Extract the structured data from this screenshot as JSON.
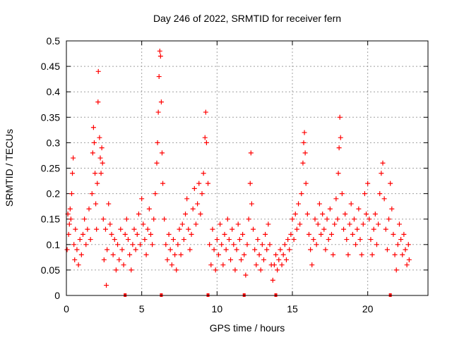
{
  "chart_data": {
    "type": "scatter",
    "title": "Day 246 of 2022, SRMTID for receiver fern",
    "xlabel": "GPS time / hours",
    "ylabel": "SRMTID / TECUs",
    "xlim": [
      0,
      24
    ],
    "ylim": [
      0,
      0.5
    ],
    "xticks": [
      0,
      5,
      10,
      15,
      20
    ],
    "xtick_labels": [
      "0",
      "5",
      "10",
      "15",
      "20"
    ],
    "yticks": [
      0,
      0.05,
      0.1,
      0.15,
      0.2,
      0.25,
      0.3,
      0.35,
      0.4,
      0.45,
      0.5
    ],
    "ytick_labels": [
      "0",
      "0.05",
      "0.1",
      "0.15",
      "0.2",
      "0.25",
      "0.3",
      "0.35",
      "0.4",
      "0.45",
      "0.5"
    ],
    "grid": true,
    "marker": "+",
    "series": [
      {
        "name": "SRMTID",
        "color": "#ff0000",
        "points": [
          [
            0.05,
            0.09
          ],
          [
            0.1,
            0.16
          ],
          [
            0.15,
            0.12
          ],
          [
            0.2,
            0.14
          ],
          [
            0.25,
            0.17
          ],
          [
            0.3,
            0.15
          ],
          [
            0.35,
            0.2
          ],
          [
            0.4,
            0.24
          ],
          [
            0.45,
            0.27
          ],
          [
            0.5,
            0.1
          ],
          [
            0.55,
            0.07
          ],
          [
            0.6,
            0.13
          ],
          [
            0.7,
            0.09
          ],
          [
            0.8,
            0.06
          ],
          [
            0.9,
            0.11
          ],
          [
            1.0,
            0.08
          ],
          [
            1.1,
            0.12
          ],
          [
            1.2,
            0.15
          ],
          [
            1.3,
            0.1
          ],
          [
            1.4,
            0.13
          ],
          [
            1.5,
            0.17
          ],
          [
            1.6,
            0.11
          ],
          [
            1.7,
            0.2
          ],
          [
            1.75,
            0.28
          ],
          [
            1.8,
            0.33
          ],
          [
            1.85,
            0.3
          ],
          [
            1.9,
            0.24
          ],
          [
            1.95,
            0.18
          ],
          [
            2.0,
            0.13
          ],
          [
            2.05,
            0.22
          ],
          [
            2.1,
            0.38
          ],
          [
            2.12,
            0.44
          ],
          [
            2.2,
            0.31
          ],
          [
            2.25,
            0.27
          ],
          [
            2.3,
            0.24
          ],
          [
            2.35,
            0.29
          ],
          [
            2.4,
            0.26
          ],
          [
            2.45,
            0.15
          ],
          [
            2.5,
            0.07
          ],
          [
            2.6,
            0.13
          ],
          [
            2.65,
            0.02
          ],
          [
            2.7,
            0.09
          ],
          [
            2.8,
            0.18
          ],
          [
            2.9,
            0.14
          ],
          [
            3.0,
            0.12
          ],
          [
            3.1,
            0.08
          ],
          [
            3.2,
            0.11
          ],
          [
            3.3,
            0.05
          ],
          [
            3.4,
            0.1
          ],
          [
            3.5,
            0.07
          ],
          [
            3.6,
            0.13
          ],
          [
            3.7,
            0.09
          ],
          [
            3.8,
            0.06
          ],
          [
            3.9,
            0.12
          ],
          [
            4.0,
            0.15
          ],
          [
            4.1,
            0.11
          ],
          [
            4.2,
            0.08
          ],
          [
            4.3,
            0.05
          ],
          [
            4.4,
            0.1
          ],
          [
            4.5,
            0.13
          ],
          [
            4.6,
            0.09
          ],
          [
            4.7,
            0.12
          ],
          [
            4.8,
            0.16
          ],
          [
            4.9,
            0.1
          ],
          [
            5.0,
            0.19
          ],
          [
            5.1,
            0.14
          ],
          [
            5.2,
            0.11
          ],
          [
            5.3,
            0.08
          ],
          [
            5.4,
            0.13
          ],
          [
            5.5,
            0.17
          ],
          [
            5.6,
            0.12
          ],
          [
            5.7,
            0.1
          ],
          [
            5.8,
            0.15
          ],
          [
            5.9,
            0.2
          ],
          [
            6.0,
            0.26
          ],
          [
            6.05,
            0.3
          ],
          [
            6.1,
            0.36
          ],
          [
            6.15,
            0.43
          ],
          [
            6.2,
            0.48
          ],
          [
            6.25,
            0.47
          ],
          [
            6.3,
            0.38
          ],
          [
            6.35,
            0.28
          ],
          [
            6.4,
            0.22
          ],
          [
            6.5,
            0.15
          ],
          [
            6.6,
            0.1
          ],
          [
            6.7,
            0.07
          ],
          [
            6.8,
            0.12
          ],
          [
            6.9,
            0.09
          ],
          [
            7.0,
            0.06
          ],
          [
            7.1,
            0.11
          ],
          [
            7.2,
            0.08
          ],
          [
            7.3,
            0.05
          ],
          [
            7.4,
            0.1
          ],
          [
            7.5,
            0.13
          ],
          [
            7.6,
            0.08
          ],
          [
            7.7,
            0.14
          ],
          [
            7.8,
            0.11
          ],
          [
            7.9,
            0.16
          ],
          [
            8.0,
            0.19
          ],
          [
            8.1,
            0.13
          ],
          [
            8.2,
            0.09
          ],
          [
            8.3,
            0.12
          ],
          [
            8.4,
            0.17
          ],
          [
            8.5,
            0.21
          ],
          [
            8.6,
            0.14
          ],
          [
            8.7,
            0.18
          ],
          [
            8.8,
            0.22
          ],
          [
            8.9,
            0.16
          ],
          [
            9.0,
            0.2
          ],
          [
            9.1,
            0.24
          ],
          [
            9.2,
            0.31
          ],
          [
            9.25,
            0.36
          ],
          [
            9.3,
            0.3
          ],
          [
            9.4,
            0.22
          ],
          [
            9.5,
            0.1
          ],
          [
            9.6,
            0.06
          ],
          [
            9.7,
            0.13
          ],
          [
            9.8,
            0.09
          ],
          [
            9.9,
            0.05
          ],
          [
            10.0,
            0.11
          ],
          [
            10.1,
            0.08
          ],
          [
            10.2,
            0.14
          ],
          [
            10.3,
            0.1
          ],
          [
            10.4,
            0.06
          ],
          [
            10.5,
            0.12
          ],
          [
            10.6,
            0.09
          ],
          [
            10.7,
            0.15
          ],
          [
            10.8,
            0.11
          ],
          [
            10.9,
            0.07
          ],
          [
            11.0,
            0.13
          ],
          [
            11.1,
            0.1
          ],
          [
            11.2,
            0.05
          ],
          [
            11.3,
            0.09
          ],
          [
            11.4,
            0.14
          ],
          [
            11.5,
            0.11
          ],
          [
            11.6,
            0.07
          ],
          [
            11.7,
            0.12
          ],
          [
            11.8,
            0.08
          ],
          [
            11.9,
            0.04
          ],
          [
            12.0,
            0.1
          ],
          [
            12.1,
            0.15
          ],
          [
            12.2,
            0.22
          ],
          [
            12.25,
            0.28
          ],
          [
            12.3,
            0.18
          ],
          [
            12.4,
            0.13
          ],
          [
            12.5,
            0.09
          ],
          [
            12.6,
            0.06
          ],
          [
            12.7,
            0.11
          ],
          [
            12.8,
            0.08
          ],
          [
            12.9,
            0.05
          ],
          [
            13.0,
            0.1
          ],
          [
            13.1,
            0.07
          ],
          [
            13.2,
            0.12
          ],
          [
            13.3,
            0.09
          ],
          [
            13.4,
            0.14
          ],
          [
            13.5,
            0.1
          ],
          [
            13.6,
            0.06
          ],
          [
            13.7,
            0.03
          ],
          [
            13.8,
            0.06
          ],
          [
            13.9,
            0.08
          ],
          [
            14.0,
            0.05
          ],
          [
            14.1,
            0.07
          ],
          [
            14.2,
            0.09
          ],
          [
            14.3,
            0.06
          ],
          [
            14.4,
            0.08
          ],
          [
            14.5,
            0.1
          ],
          [
            14.6,
            0.07
          ],
          [
            14.7,
            0.11
          ],
          [
            14.8,
            0.09
          ],
          [
            14.9,
            0.12
          ],
          [
            15.0,
            0.15
          ],
          [
            15.1,
            0.11
          ],
          [
            15.2,
            0.16
          ],
          [
            15.3,
            0.13
          ],
          [
            15.4,
            0.18
          ],
          [
            15.5,
            0.14
          ],
          [
            15.6,
            0.2
          ],
          [
            15.7,
            0.26
          ],
          [
            15.75,
            0.3
          ],
          [
            15.8,
            0.32
          ],
          [
            15.85,
            0.28
          ],
          [
            15.9,
            0.22
          ],
          [
            16.0,
            0.16
          ],
          [
            16.1,
            0.12
          ],
          [
            16.2,
            0.09
          ],
          [
            16.3,
            0.06
          ],
          [
            16.4,
            0.11
          ],
          [
            16.5,
            0.15
          ],
          [
            16.6,
            0.1
          ],
          [
            16.7,
            0.14
          ],
          [
            16.8,
            0.18
          ],
          [
            16.9,
            0.12
          ],
          [
            17.0,
            0.16
          ],
          [
            17.1,
            0.13
          ],
          [
            17.2,
            0.09
          ],
          [
            17.3,
            0.15
          ],
          [
            17.4,
            0.11
          ],
          [
            17.5,
            0.17
          ],
          [
            17.6,
            0.12
          ],
          [
            17.7,
            0.08
          ],
          [
            17.8,
            0.14
          ],
          [
            17.9,
            0.19
          ],
          [
            18.0,
            0.15
          ],
          [
            18.05,
            0.24
          ],
          [
            18.1,
            0.29
          ],
          [
            18.15,
            0.35
          ],
          [
            18.2,
            0.31
          ],
          [
            18.3,
            0.2
          ],
          [
            18.4,
            0.13
          ],
          [
            18.5,
            0.16
          ],
          [
            18.6,
            0.11
          ],
          [
            18.7,
            0.08
          ],
          [
            18.8,
            0.14
          ],
          [
            18.9,
            0.18
          ],
          [
            19.0,
            0.12
          ],
          [
            19.1,
            0.15
          ],
          [
            19.2,
            0.1
          ],
          [
            19.3,
            0.13
          ],
          [
            19.4,
            0.17
          ],
          [
            19.5,
            0.11
          ],
          [
            19.6,
            0.08
          ],
          [
            19.7,
            0.14
          ],
          [
            19.8,
            0.2
          ],
          [
            19.9,
            0.16
          ],
          [
            20.0,
            0.22
          ],
          [
            20.1,
            0.15
          ],
          [
            20.2,
            0.11
          ],
          [
            20.3,
            0.08
          ],
          [
            20.4,
            0.13
          ],
          [
            20.5,
            0.16
          ],
          [
            20.6,
            0.1
          ],
          [
            20.7,
            0.14
          ],
          [
            20.8,
            0.2
          ],
          [
            20.9,
            0.24
          ],
          [
            21.0,
            0.26
          ],
          [
            21.1,
            0.19
          ],
          [
            21.2,
            0.13
          ],
          [
            21.3,
            0.09
          ],
          [
            21.4,
            0.15
          ],
          [
            21.5,
            0.22
          ],
          [
            21.6,
            0.17
          ],
          [
            21.7,
            0.12
          ],
          [
            21.8,
            0.08
          ],
          [
            21.9,
            0.05
          ],
          [
            22.0,
            0.1
          ],
          [
            22.1,
            0.14
          ],
          [
            22.2,
            0.11
          ],
          [
            22.3,
            0.08
          ],
          [
            22.4,
            0.12
          ],
          [
            22.5,
            0.09
          ],
          [
            22.6,
            0.06
          ],
          [
            22.7,
            0.1
          ],
          [
            22.75,
            0.07
          ]
        ]
      }
    ],
    "zero_markers_x": [
      3.9,
      6.3,
      9.4,
      11.8,
      13.9,
      21.5
    ]
  }
}
